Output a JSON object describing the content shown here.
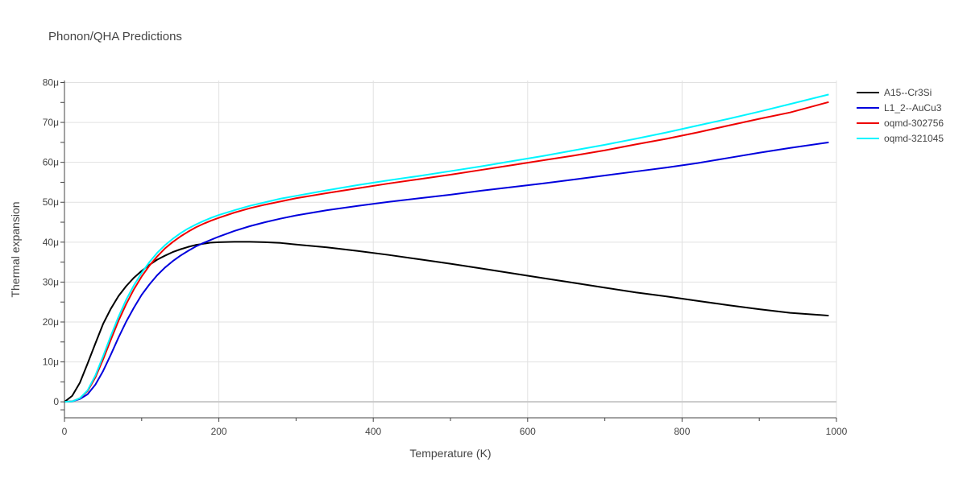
{
  "chart_data": {
    "type": "line",
    "title": "Phonon/QHA Predictions",
    "xlabel": "Temperature (K)",
    "ylabel": "Thermal expansion",
    "xlim": [
      0,
      1000
    ],
    "ylim": [
      -4e-06,
      8.05e-05
    ],
    "x_ticks": [
      0,
      200,
      400,
      600,
      800,
      1000
    ],
    "x_tick_labels": [
      "0",
      "200",
      "400",
      "600",
      "800",
      "1000"
    ],
    "y_ticks": [
      0,
      1e-05,
      2e-05,
      3e-05,
      4e-05,
      5e-05,
      6e-05,
      7e-05,
      8e-05
    ],
    "y_tick_labels": [
      "0",
      "10μ",
      "20μ",
      "30μ",
      "40μ",
      "50μ",
      "60μ",
      "70μ",
      "80μ"
    ],
    "grid": true,
    "legend_position": "top-right",
    "series": [
      {
        "name": "A15--Cr3Si",
        "color": "#000000",
        "x": [
          0,
          10,
          20,
          30,
          40,
          50,
          60,
          70,
          80,
          90,
          100,
          110,
          120,
          130,
          140,
          150,
          160,
          170,
          180,
          190,
          200,
          220,
          240,
          260,
          280,
          300,
          340,
          380,
          420,
          460,
          500,
          540,
          580,
          620,
          660,
          700,
          740,
          780,
          820,
          860,
          900,
          940,
          990
        ],
        "y": [
          0,
          1.5e-06,
          4.8e-06,
          9.6e-06,
          1.46e-05,
          1.95e-05,
          2.33e-05,
          2.65e-05,
          2.9e-05,
          3.11e-05,
          3.28e-05,
          3.43e-05,
          3.56e-05,
          3.66e-05,
          3.75e-05,
          3.82e-05,
          3.88e-05,
          3.93e-05,
          3.96e-05,
          3.99e-05,
          4e-05,
          4.01e-05,
          4.01e-05,
          4e-05,
          3.98e-05,
          3.94e-05,
          3.87e-05,
          3.78e-05,
          3.68e-05,
          3.57e-05,
          3.46e-05,
          3.34e-05,
          3.22e-05,
          3.1e-05,
          2.98e-05,
          2.86e-05,
          2.74e-05,
          2.64e-05,
          2.53e-05,
          2.42e-05,
          2.32e-05,
          2.23e-05,
          2.16e-05
        ]
      },
      {
        "name": "L1_2--AuCu3",
        "color": "#0000dd",
        "x": [
          0,
          10,
          20,
          30,
          40,
          50,
          60,
          70,
          80,
          90,
          100,
          110,
          120,
          130,
          140,
          150,
          160,
          170,
          180,
          190,
          200,
          220,
          240,
          260,
          280,
          300,
          340,
          380,
          420,
          460,
          500,
          540,
          580,
          620,
          660,
          700,
          740,
          780,
          820,
          860,
          900,
          940,
          990
        ],
        "y": [
          0,
          1e-07,
          7e-07,
          1.9e-06,
          4.3e-06,
          7.7e-06,
          1.18e-05,
          1.61e-05,
          2.01e-05,
          2.36e-05,
          2.68e-05,
          2.94e-05,
          3.17e-05,
          3.36e-05,
          3.52e-05,
          3.66e-05,
          3.78e-05,
          3.89e-05,
          3.98e-05,
          4.06e-05,
          4.14e-05,
          4.28e-05,
          4.4e-05,
          4.5e-05,
          4.59e-05,
          4.67e-05,
          4.8e-05,
          4.91e-05,
          5.01e-05,
          5.1e-05,
          5.19e-05,
          5.29e-05,
          5.38e-05,
          5.47e-05,
          5.57e-05,
          5.67e-05,
          5.77e-05,
          5.87e-05,
          5.98e-05,
          6.11e-05,
          6.24e-05,
          6.36e-05,
          6.5e-05
        ]
      },
      {
        "name": "oqmd-302756",
        "color": "#ee0000",
        "x": [
          0,
          10,
          20,
          30,
          40,
          50,
          60,
          70,
          80,
          90,
          100,
          110,
          120,
          130,
          140,
          150,
          160,
          170,
          180,
          190,
          200,
          220,
          240,
          260,
          280,
          300,
          340,
          380,
          420,
          460,
          500,
          540,
          580,
          620,
          660,
          700,
          740,
          780,
          820,
          860,
          900,
          940,
          990
        ],
        "y": [
          0,
          1e-07,
          9e-07,
          2.7e-06,
          6.1e-06,
          1.06e-05,
          1.55e-05,
          2.03e-05,
          2.45e-05,
          2.82e-05,
          3.14e-05,
          3.41e-05,
          3.64e-05,
          3.84e-05,
          4e-05,
          4.14e-05,
          4.26e-05,
          4.37e-05,
          4.46e-05,
          4.54e-05,
          4.61e-05,
          4.74e-05,
          4.85e-05,
          4.94e-05,
          5.02e-05,
          5.1e-05,
          5.23e-05,
          5.35e-05,
          5.47e-05,
          5.58e-05,
          5.69e-05,
          5.81e-05,
          5.93e-05,
          6.05e-05,
          6.17e-05,
          6.3e-05,
          6.45e-05,
          6.59e-05,
          6.75e-05,
          6.92e-05,
          7.09e-05,
          7.25e-05,
          7.51e-05
        ]
      },
      {
        "name": "oqmd-321045",
        "color": "#00f5ff",
        "x": [
          0,
          10,
          20,
          30,
          40,
          50,
          60,
          70,
          80,
          90,
          100,
          110,
          120,
          130,
          140,
          150,
          160,
          170,
          180,
          190,
          200,
          220,
          240,
          260,
          280,
          300,
          340,
          380,
          420,
          460,
          500,
          540,
          580,
          620,
          660,
          700,
          740,
          780,
          820,
          860,
          900,
          940,
          990
        ],
        "y": [
          0,
          1e-07,
          9e-07,
          2.9e-06,
          6.6e-06,
          1.14e-05,
          1.65e-05,
          2.13e-05,
          2.56e-05,
          2.92e-05,
          3.23e-05,
          3.5e-05,
          3.73e-05,
          3.92e-05,
          4.08e-05,
          4.22e-05,
          4.34e-05,
          4.44e-05,
          4.53e-05,
          4.61e-05,
          4.68e-05,
          4.8e-05,
          4.91e-05,
          5e-05,
          5.09e-05,
          5.16e-05,
          5.3e-05,
          5.43e-05,
          5.55e-05,
          5.66e-05,
          5.78e-05,
          5.9e-05,
          6.03e-05,
          6.16e-05,
          6.3e-05,
          6.44e-05,
          6.59e-05,
          6.75e-05,
          6.92e-05,
          7.09e-05,
          7.27e-05,
          7.46e-05,
          7.7e-05
        ]
      }
    ]
  }
}
